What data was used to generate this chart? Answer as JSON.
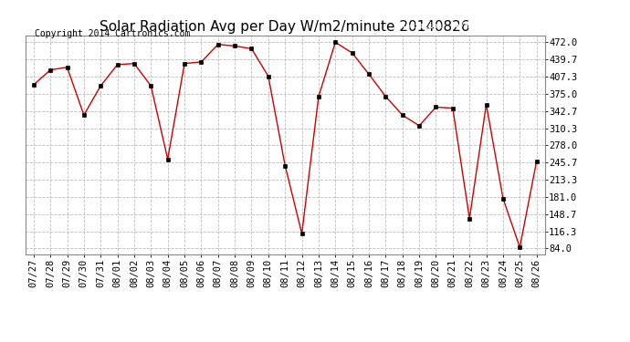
{
  "title": "Solar Radiation Avg per Day W/m2/minute 20140826",
  "copyright": "Copyright 2014 Cartronics.com",
  "legend_label": "Radiation  (W/m2/Minute)",
  "legend_bg": "#cc0000",
  "legend_text_color": "#ffffff",
  "dates": [
    "07/27",
    "07/28",
    "07/29",
    "07/30",
    "07/31",
    "08/01",
    "08/02",
    "08/03",
    "08/04",
    "08/05",
    "08/06",
    "08/07",
    "08/08",
    "08/09",
    "08/10",
    "08/11",
    "08/12",
    "08/13",
    "08/14",
    "08/15",
    "08/16",
    "08/17",
    "08/18",
    "08/19",
    "08/20",
    "08/21",
    "08/22",
    "08/23",
    "08/24",
    "08/25",
    "08/26"
  ],
  "values": [
    392,
    420,
    425,
    335,
    390,
    430,
    432,
    390,
    252,
    432,
    435,
    468,
    465,
    460,
    408,
    240,
    112,
    370,
    472,
    452,
    412,
    370,
    335,
    315,
    350,
    348,
    140,
    355,
    178,
    86,
    248
  ],
  "line_color": "#cc0000",
  "marker_color": "#000000",
  "bg_color": "#ffffff",
  "plot_bg_color": "#ffffff",
  "grid_color": "#bbbbbb",
  "yticks": [
    84.0,
    116.3,
    148.7,
    181.0,
    213.3,
    245.7,
    278.0,
    310.3,
    342.7,
    375.0,
    407.3,
    439.7,
    472.0
  ],
  "ylim": [
    72,
    484
  ],
  "title_fontsize": 11,
  "tick_fontsize": 7.5,
  "copyright_fontsize": 7
}
